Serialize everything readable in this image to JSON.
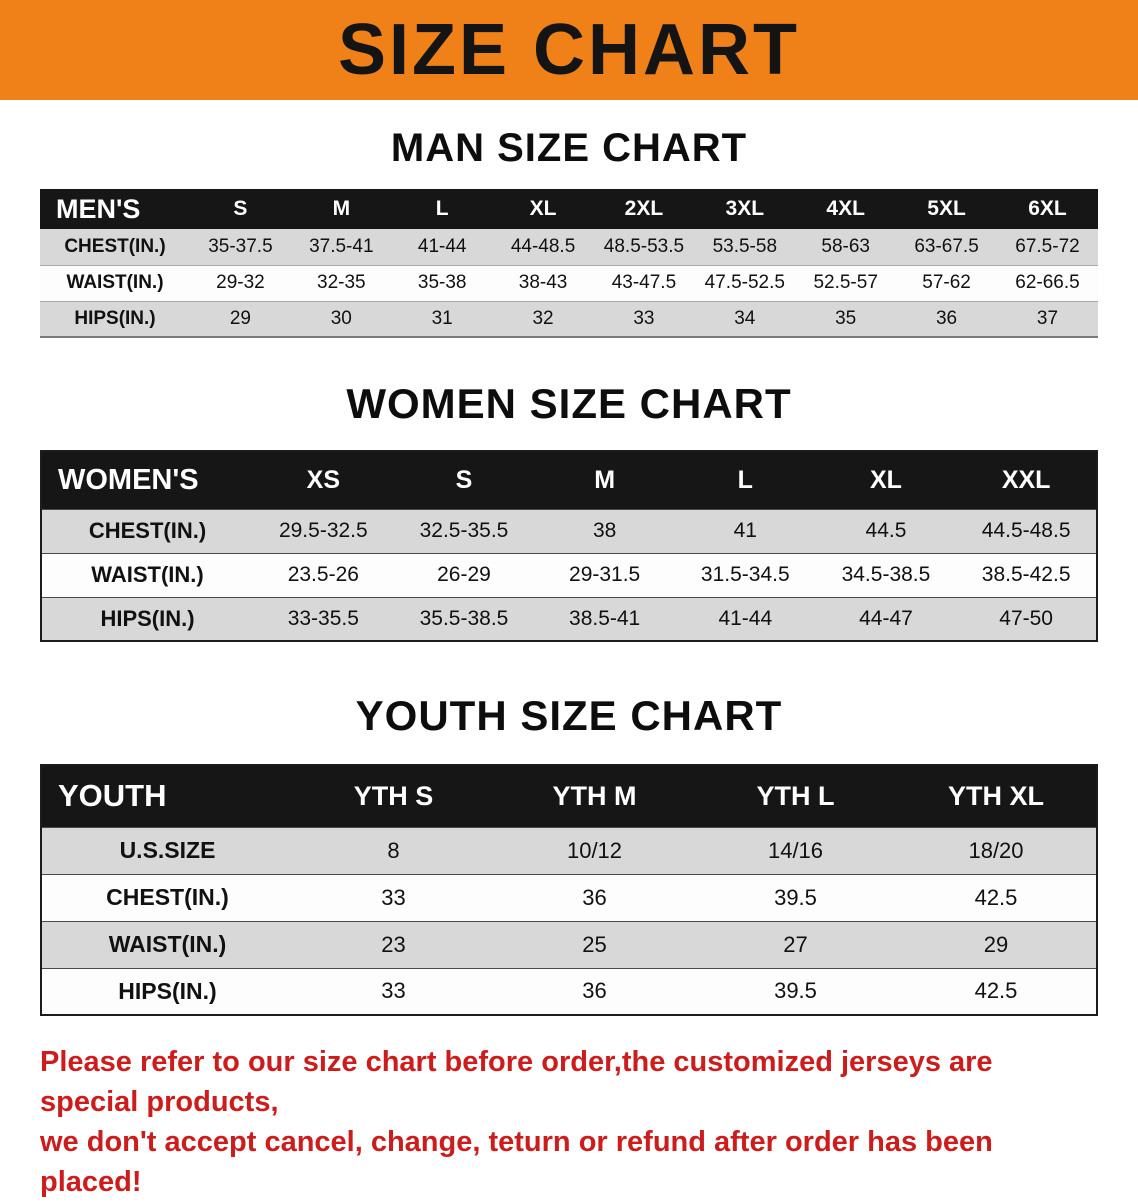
{
  "banner": {
    "title": "SIZE CHART"
  },
  "colors": {
    "banner_bg": "#f08119",
    "table_header_bg": "#161616",
    "row_stripe": "#d8d8d8",
    "footer_text": "#cc1c1c"
  },
  "sections": [
    {
      "id": "men",
      "heading": "MAN SIZE CHART",
      "table": {
        "corner": "MEN'S",
        "columns": [
          "S",
          "M",
          "L",
          "XL",
          "2XL",
          "3XL",
          "4XL",
          "5XL",
          "6XL"
        ],
        "rows": [
          {
            "label": "CHEST(IN.)",
            "values": [
              "35-37.5",
              "37.5-41",
              "41-44",
              "44-48.5",
              "48.5-53.5",
              "53.5-58",
              "58-63",
              "63-67.5",
              "67.5-72"
            ]
          },
          {
            "label": "WAIST(IN.)",
            "values": [
              "29-32",
              "32-35",
              "35-38",
              "38-43",
              "43-47.5",
              "47.5-52.5",
              "52.5-57",
              "57-62",
              "62-66.5"
            ]
          },
          {
            "label": "HIPS(IN.)",
            "values": [
              "29",
              "30",
              "31",
              "32",
              "33",
              "34",
              "35",
              "36",
              "37"
            ]
          }
        ]
      }
    },
    {
      "id": "women",
      "heading": "WOMEN SIZE CHART",
      "table": {
        "corner": "WOMEN'S",
        "columns": [
          "XS",
          "S",
          "M",
          "L",
          "XL",
          "XXL"
        ],
        "rows": [
          {
            "label": "CHEST(IN.)",
            "values": [
              "29.5-32.5",
              "32.5-35.5",
              "38",
              "41",
              "44.5",
              "44.5-48.5"
            ]
          },
          {
            "label": "WAIST(IN.)",
            "values": [
              "23.5-26",
              "26-29",
              "29-31.5",
              "31.5-34.5",
              "34.5-38.5",
              "38.5-42.5"
            ]
          },
          {
            "label": "HIPS(IN.)",
            "values": [
              "33-35.5",
              "35.5-38.5",
              "38.5-41",
              "41-44",
              "44-47",
              "47-50"
            ]
          }
        ]
      }
    },
    {
      "id": "youth",
      "heading": "YOUTH SIZE CHART",
      "table": {
        "corner": "YOUTH",
        "columns": [
          "YTH S",
          "YTH M",
          "YTH L",
          "YTH XL"
        ],
        "rows": [
          {
            "label": "U.S.SIZE",
            "values": [
              "8",
              "10/12",
              "14/16",
              "18/20"
            ]
          },
          {
            "label": "CHEST(IN.)",
            "values": [
              "33",
              "36",
              "39.5",
              "42.5"
            ]
          },
          {
            "label": "WAIST(IN.)",
            "values": [
              "23",
              "25",
              "27",
              "29"
            ]
          },
          {
            "label": "HIPS(IN.)",
            "values": [
              "33",
              "36",
              "39.5",
              "42.5"
            ]
          }
        ]
      }
    }
  ],
  "footer": {
    "line1": "Please refer to our size chart before order,the customized jerseys are special products,",
    "line2": "we don't accept cancel, change, teturn or refund after order has been placed!"
  }
}
